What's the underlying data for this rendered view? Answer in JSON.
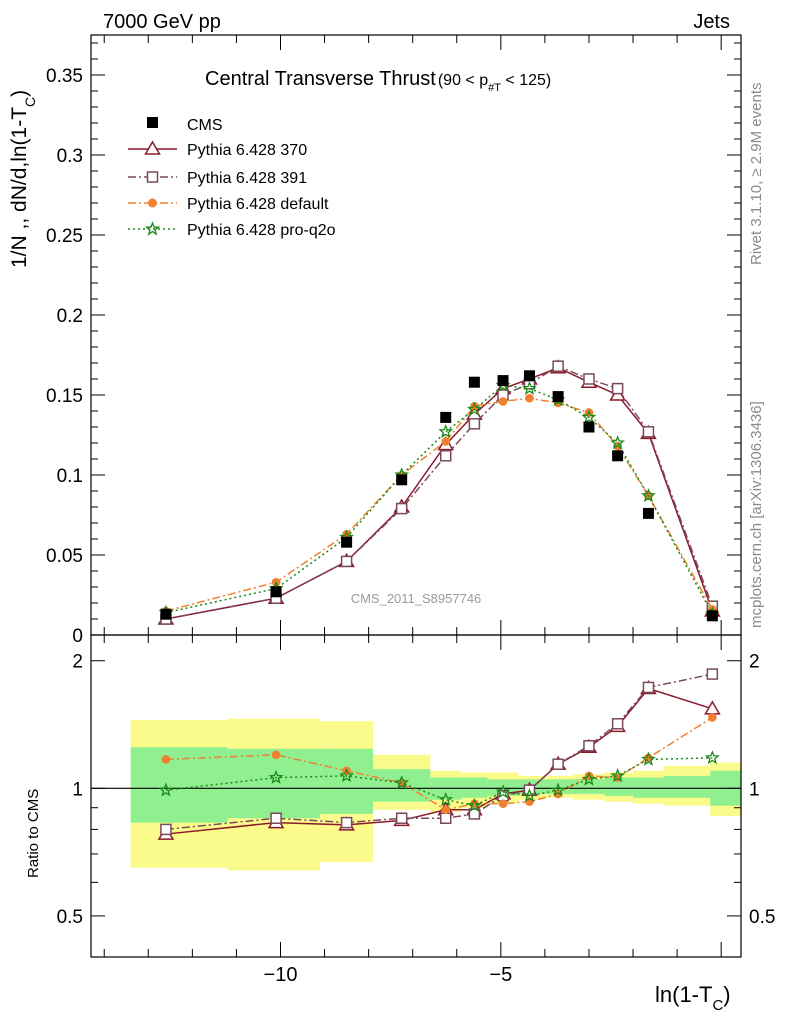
{
  "header": {
    "left": "7000 GeV pp",
    "right": "Jets"
  },
  "side_labels": {
    "rivet": "Rivet 3.1.10, ≥ 2.9M events",
    "mcplots": "mcplots.cern.ch [arXiv:1306.3436]"
  },
  "chart_data": {
    "type": "scatter",
    "title": "Central Transverse Thrust",
    "title_suffix": {
      "open": "(90 < p",
      "sub": "#T",
      "close": " < 125)"
    },
    "watermark": "CMS_2011_S8957746",
    "xlabel": {
      "main": "ln(1-T",
      "sub": "C",
      "close": ")"
    },
    "ylabel": {
      "main": "1/N ,, dN/d,ln(1-T",
      "sub": "C",
      "close": ")"
    },
    "ratio_ylabel": "Ratio to CMS",
    "xlim": [
      -14.3,
      0.45
    ],
    "ylim": [
      0,
      0.375
    ],
    "ratio_ylim": [
      0.4,
      2.3
    ],
    "x_ticks": [
      -10,
      -5
    ],
    "x_tick_labels": [
      "−10",
      "−5"
    ],
    "y_ticks": [
      0,
      0.05,
      0.1,
      0.15,
      0.2,
      0.25,
      0.3,
      0.35
    ],
    "y_tick_labels": [
      "0",
      "0.05",
      "0.1",
      "0.15",
      "0.2",
      "0.25",
      "0.3",
      "0.35"
    ],
    "ratio_ticks": [
      0.5,
      1,
      2
    ],
    "ratio_tick_labels": [
      "0.5",
      "1",
      "2"
    ],
    "legend_position": "top-left",
    "x": [
      -12.6,
      -10.1,
      -8.5,
      -7.25,
      -6.25,
      -5.6,
      -4.95,
      -4.35,
      -3.7,
      -3.0,
      -2.35,
      -1.65,
      -0.2
    ],
    "band_edges": [
      -13.4,
      -11.2,
      -9.1,
      -7.9,
      -6.6,
      -5.9,
      -5.3,
      -4.6,
      -4.0,
      -3.35,
      -2.65,
      -2.0,
      -1.3,
      -0.25,
      0.45
    ],
    "band_yellow": [
      [
        0.65,
        1.45
      ],
      [
        0.64,
        1.46
      ],
      [
        0.67,
        1.44
      ],
      [
        0.89,
        1.2
      ],
      [
        0.88,
        1.1
      ],
      [
        0.9,
        1.09
      ],
      [
        0.92,
        1.09
      ],
      [
        0.94,
        1.07
      ],
      [
        0.95,
        1.07
      ],
      [
        0.94,
        1.08
      ],
      [
        0.93,
        1.09
      ],
      [
        0.92,
        1.1
      ],
      [
        0.91,
        1.13
      ],
      [
        0.86,
        1.15
      ]
    ],
    "band_green": [
      [
        0.83,
        1.25
      ],
      [
        0.85,
        1.24
      ],
      [
        0.87,
        1.24
      ],
      [
        0.93,
        1.11
      ],
      [
        0.94,
        1.06
      ],
      [
        0.95,
        1.06
      ],
      [
        0.96,
        1.05
      ],
      [
        0.97,
        1.05
      ],
      [
        0.97,
        1.05
      ],
      [
        0.97,
        1.05
      ],
      [
        0.96,
        1.06
      ],
      [
        0.95,
        1.06
      ],
      [
        0.95,
        1.07
      ],
      [
        0.91,
        1.1
      ]
    ],
    "series": [
      {
        "name": "CMS",
        "color": "#000000",
        "marker": "filled-square",
        "values": [
          0.013,
          0.027,
          0.058,
          0.097,
          0.136,
          0.158,
          0.159,
          0.162,
          0.149,
          0.13,
          0.112,
          0.076,
          0.012
        ]
      },
      {
        "name": "Pythia 6.428 370",
        "color": "#8b1a2b",
        "marker": "open-triangle",
        "line": "solid",
        "values": [
          0.01,
          0.023,
          0.046,
          0.08,
          0.119,
          0.138,
          0.154,
          0.16,
          0.167,
          0.158,
          0.15,
          0.126,
          0.015
        ],
        "ratio": [
          0.78,
          0.83,
          0.82,
          0.84,
          0.89,
          0.89,
          0.97,
          0.99,
          1.14,
          1.25,
          1.4,
          1.72,
          1.54
        ]
      },
      {
        "name": "Pythia 6.428 391",
        "color": "#7a4a5c",
        "marker": "open-square",
        "line": "dash-dot",
        "values": [
          0.01,
          0.023,
          0.046,
          0.079,
          0.112,
          0.132,
          0.15,
          0.157,
          0.168,
          0.16,
          0.154,
          0.127,
          0.018
        ],
        "ratio": [
          0.8,
          0.85,
          0.83,
          0.85,
          0.85,
          0.87,
          0.96,
          0.99,
          1.14,
          1.26,
          1.42,
          1.73,
          1.86
        ]
      },
      {
        "name": "Pythia 6.428 default",
        "color": "#f08030",
        "marker": "filled-circle",
        "line": "dash-dot",
        "values": [
          0.015,
          0.033,
          0.063,
          0.1,
          0.121,
          0.143,
          0.146,
          0.148,
          0.145,
          0.139,
          0.118,
          0.087,
          0.016
        ],
        "ratio": [
          1.17,
          1.2,
          1.1,
          1.03,
          0.89,
          0.92,
          0.92,
          0.93,
          0.97,
          1.07,
          1.06,
          1.18,
          1.47
        ]
      },
      {
        "name": "Pythia 6.428 pro-q2o",
        "color": "#1a8a1a",
        "marker": "star",
        "line": "dotted",
        "values": [
          0.014,
          0.029,
          0.061,
          0.1,
          0.127,
          0.141,
          0.156,
          0.154,
          0.147,
          0.136,
          0.12,
          0.087,
          0.013
        ],
        "ratio": [
          0.99,
          1.06,
          1.07,
          1.03,
          0.94,
          0.91,
          0.98,
          0.96,
          0.99,
          1.05,
          1.07,
          1.17,
          1.18
        ]
      }
    ]
  }
}
